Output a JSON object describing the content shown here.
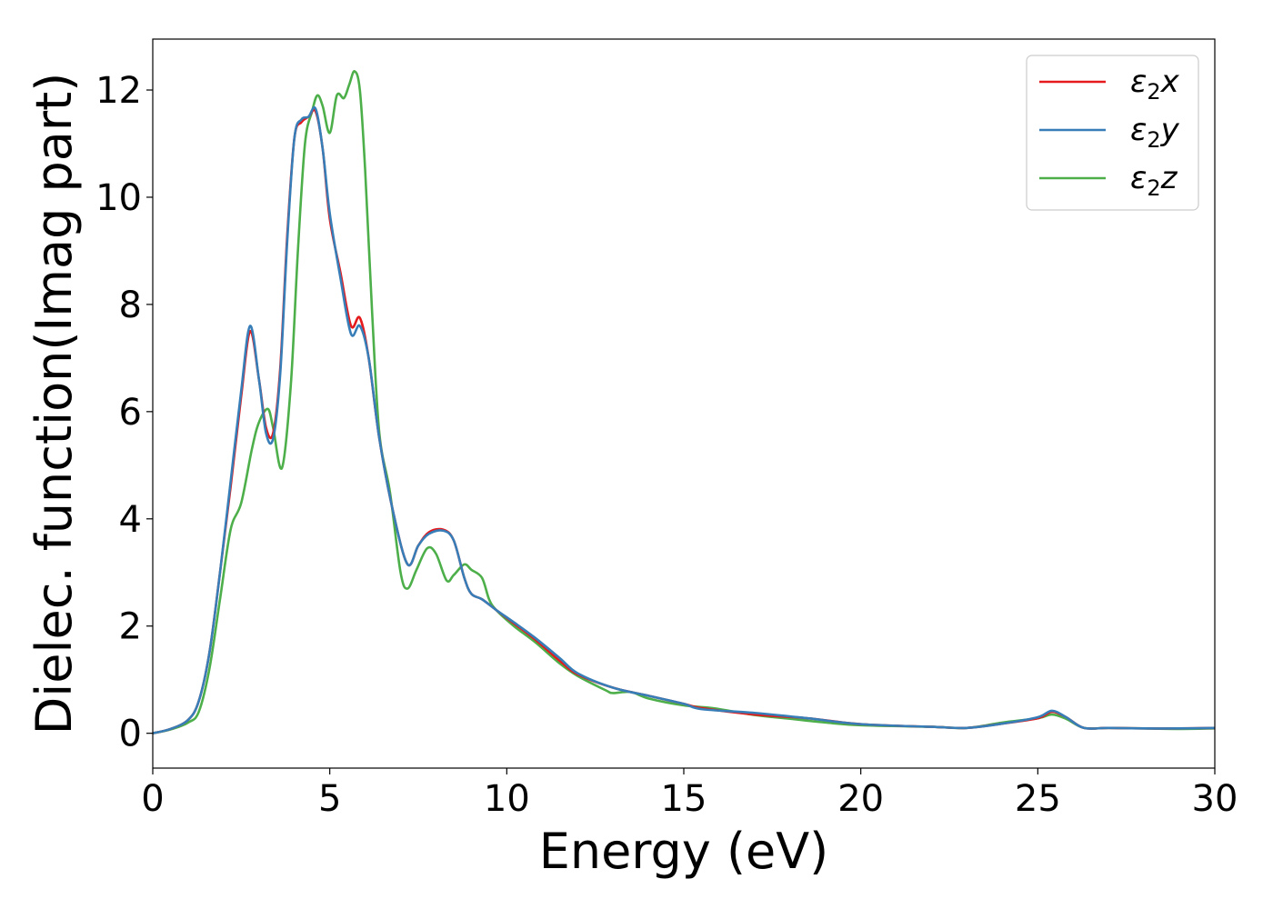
{
  "chart_data": {
    "type": "line",
    "xlabel": "Energy (eV)",
    "ylabel": "Dielec. function(Imag part)",
    "xlim": [
      0,
      30
    ],
    "ylim": [
      -0.65,
      12.95
    ],
    "xticks": [
      0,
      5,
      10,
      15,
      20,
      25,
      30
    ],
    "yticks": [
      0,
      2,
      4,
      6,
      8,
      10,
      12
    ],
    "grid": false,
    "legend_position": "top-right",
    "series": [
      {
        "name": "ε₂x",
        "legend_base": "ε",
        "legend_sub": "2",
        "legend_suffix": "x",
        "color": "#e41a1c",
        "x": [
          0,
          0.5,
          1.0,
          1.3,
          1.6,
          1.9,
          2.2,
          2.5,
          2.75,
          3.0,
          3.2,
          3.4,
          3.6,
          3.8,
          4.0,
          4.2,
          4.4,
          4.6,
          4.8,
          5.0,
          5.3,
          5.6,
          5.85,
          6.1,
          6.4,
          6.8,
          7.2,
          7.5,
          7.8,
          8.2,
          8.5,
          8.8,
          9.0,
          9.3,
          9.7,
          10.2,
          10.8,
          11.5,
          12.0,
          13.0,
          14.0,
          15.0,
          15.5,
          17.0,
          18.5,
          20.0,
          22.0,
          23.0,
          24.0,
          25.0,
          25.4,
          25.8,
          26.3,
          27.0,
          28.0,
          29.0,
          30.0
        ],
        "y": [
          0.0,
          0.08,
          0.25,
          0.6,
          1.5,
          3.0,
          4.6,
          6.3,
          7.5,
          6.6,
          5.7,
          5.6,
          6.8,
          9.3,
          11.1,
          11.4,
          11.5,
          11.6,
          10.9,
          9.6,
          8.6,
          7.6,
          7.75,
          7.0,
          5.5,
          4.1,
          3.15,
          3.5,
          3.75,
          3.8,
          3.6,
          2.9,
          2.6,
          2.5,
          2.3,
          2.05,
          1.75,
          1.35,
          1.1,
          0.85,
          0.7,
          0.55,
          0.47,
          0.35,
          0.28,
          0.17,
          0.12,
          0.1,
          0.18,
          0.28,
          0.4,
          0.3,
          0.1,
          0.1,
          0.09,
          0.09,
          0.1
        ]
      },
      {
        "name": "ε₂y",
        "legend_base": "ε",
        "legend_sub": "2",
        "legend_suffix": "y",
        "color": "#377eb8",
        "x": [
          0,
          0.5,
          1.0,
          1.3,
          1.6,
          1.9,
          2.2,
          2.5,
          2.75,
          3.0,
          3.2,
          3.4,
          3.6,
          3.8,
          4.0,
          4.2,
          4.4,
          4.6,
          4.8,
          5.0,
          5.3,
          5.6,
          5.85,
          6.1,
          6.4,
          6.8,
          7.2,
          7.5,
          7.8,
          8.2,
          8.5,
          8.8,
          9.0,
          9.3,
          9.7,
          10.2,
          10.8,
          11.5,
          12.0,
          13.0,
          14.0,
          15.0,
          15.5,
          17.0,
          18.5,
          20.0,
          22.0,
          23.0,
          24.0,
          25.0,
          25.4,
          25.8,
          26.3,
          27.0,
          28.0,
          29.0,
          30.0
        ],
        "y": [
          0.0,
          0.08,
          0.25,
          0.6,
          1.5,
          3.0,
          4.7,
          6.4,
          7.6,
          6.6,
          5.6,
          5.5,
          6.7,
          9.2,
          11.1,
          11.45,
          11.5,
          11.65,
          10.9,
          9.7,
          8.5,
          7.45,
          7.6,
          7.0,
          5.5,
          4.1,
          3.15,
          3.5,
          3.72,
          3.78,
          3.6,
          2.9,
          2.6,
          2.5,
          2.3,
          2.07,
          1.78,
          1.4,
          1.12,
          0.85,
          0.7,
          0.55,
          0.45,
          0.38,
          0.28,
          0.17,
          0.12,
          0.1,
          0.18,
          0.3,
          0.42,
          0.3,
          0.1,
          0.1,
          0.09,
          0.09,
          0.1
        ]
      },
      {
        "name": "ε₂z",
        "legend_base": "ε",
        "legend_sub": "2",
        "legend_suffix": "z",
        "color": "#4daf4a",
        "x": [
          0,
          0.5,
          1.0,
          1.3,
          1.6,
          1.9,
          2.2,
          2.5,
          2.8,
          3.0,
          3.25,
          3.4,
          3.65,
          3.9,
          4.1,
          4.3,
          4.5,
          4.65,
          4.8,
          5.0,
          5.2,
          5.4,
          5.55,
          5.7,
          5.85,
          6.0,
          6.2,
          6.4,
          6.7,
          7.0,
          7.2,
          7.45,
          7.75,
          8.0,
          8.3,
          8.5,
          8.8,
          9.0,
          9.3,
          9.5,
          9.7,
          10.2,
          10.8,
          11.5,
          12.0,
          12.8,
          13.0,
          13.5,
          14.0,
          15.0,
          15.8,
          17.0,
          18.0,
          19.0,
          20.0,
          22.0,
          23.0,
          24.0,
          25.0,
          25.4,
          25.8,
          26.3,
          27.0,
          28.0,
          29.0,
          30.0
        ],
        "y": [
          0.0,
          0.07,
          0.2,
          0.4,
          1.2,
          2.5,
          3.8,
          4.3,
          5.3,
          5.8,
          6.05,
          5.7,
          4.95,
          6.5,
          9.0,
          11.0,
          11.6,
          11.9,
          11.7,
          11.2,
          11.9,
          11.85,
          12.1,
          12.35,
          12.0,
          10.5,
          7.8,
          5.6,
          4.5,
          3.0,
          2.7,
          3.05,
          3.45,
          3.35,
          2.85,
          2.95,
          3.15,
          3.05,
          2.9,
          2.5,
          2.3,
          2.0,
          1.7,
          1.3,
          1.07,
          0.8,
          0.75,
          0.77,
          0.65,
          0.52,
          0.47,
          0.34,
          0.27,
          0.2,
          0.15,
          0.12,
          0.1,
          0.2,
          0.28,
          0.35,
          0.27,
          0.1,
          0.1,
          0.09,
          0.08,
          0.09
        ]
      }
    ]
  }
}
